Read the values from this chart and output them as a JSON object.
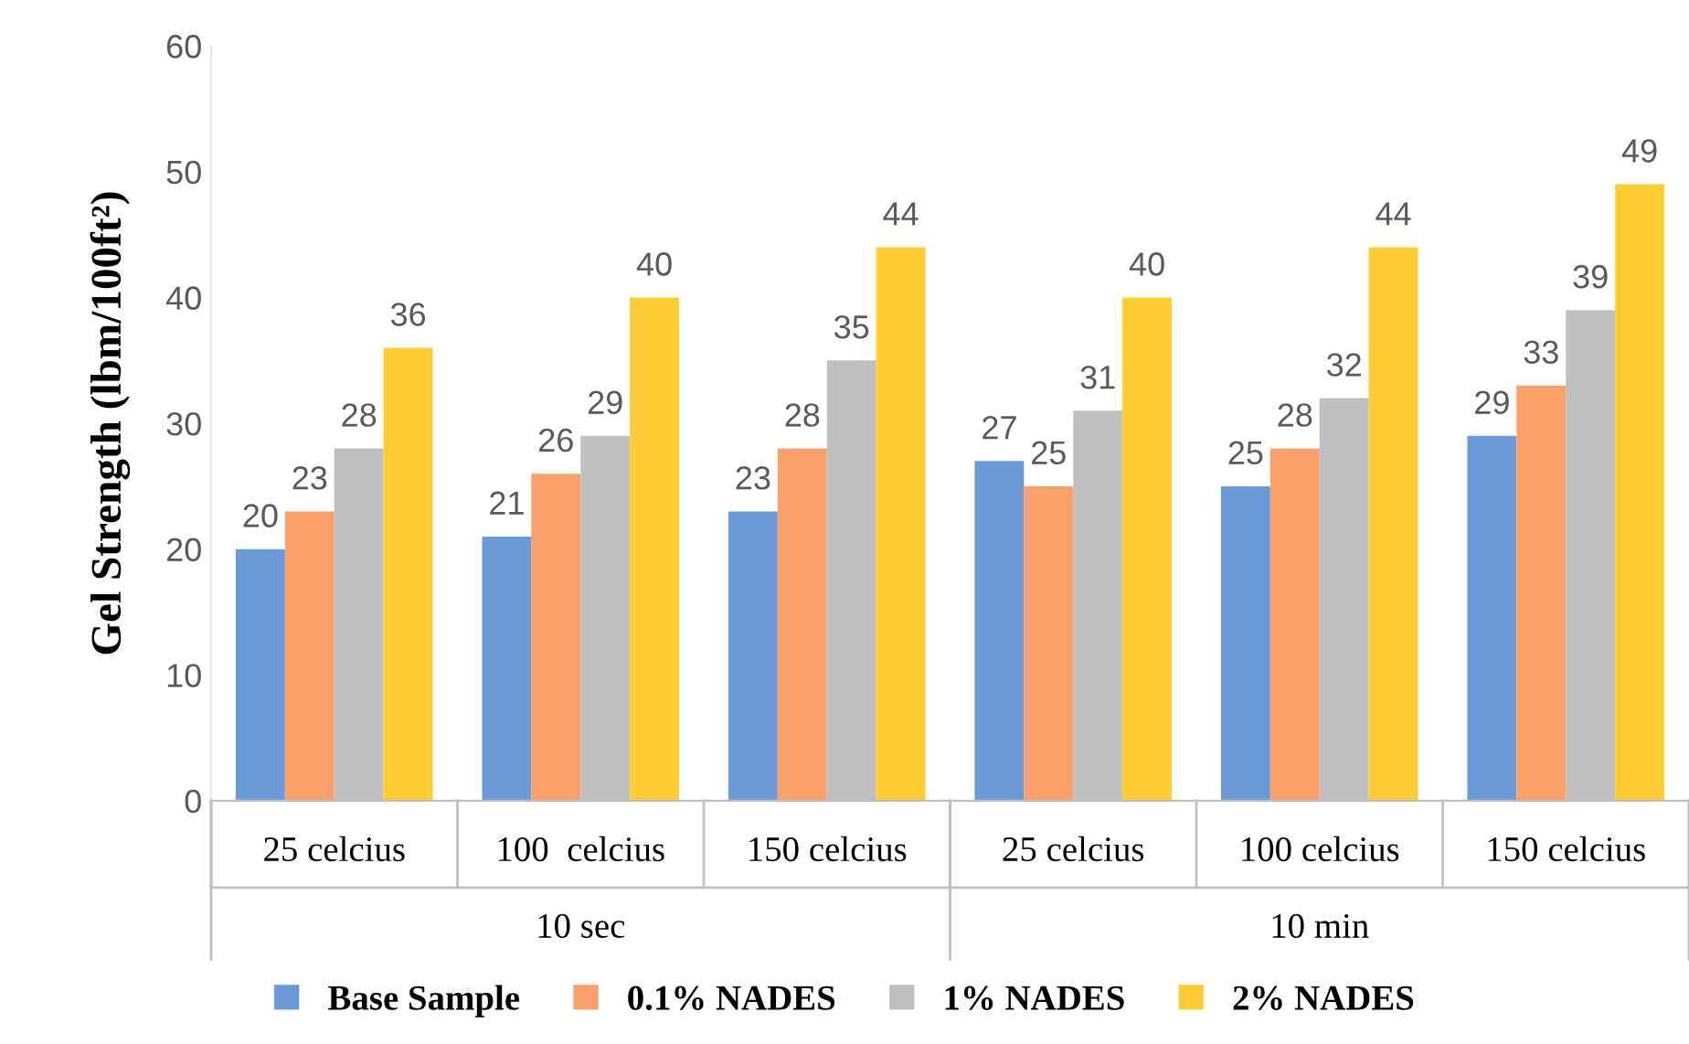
{
  "chart_data": {
    "type": "bar",
    "ylabel": "Gel Strength (lbm/100ft²)",
    "categories": [
      "25 celcius",
      "100  celcius",
      "150 celcius",
      "25 celcius",
      "100 celcius",
      "150 celcius"
    ],
    "annotations": [
      "10 sec",
      "10 min"
    ],
    "series": [
      {
        "name": "Base Sample",
        "color": "#6a9bd8",
        "values": [
          20,
          21,
          23,
          27,
          25,
          29
        ]
      },
      {
        "name": "0.1% NADES",
        "color": "#f9a06b",
        "values": [
          23,
          26,
          28,
          25,
          28,
          33
        ]
      },
      {
        "name": "1% NADES",
        "color": "#bfbfbf",
        "values": [
          28,
          29,
          35,
          31,
          32,
          39
        ]
      },
      {
        "name": "2% NADES",
        "color": "#ffcc33",
        "values": [
          36,
          40,
          44,
          40,
          44,
          49
        ]
      }
    ],
    "ylim": [
      0,
      60
    ],
    "yticks": [
      0,
      10,
      20,
      30,
      40,
      50,
      60
    ],
    "grid": false,
    "legend": "bottom",
    "data_labels": true
  }
}
